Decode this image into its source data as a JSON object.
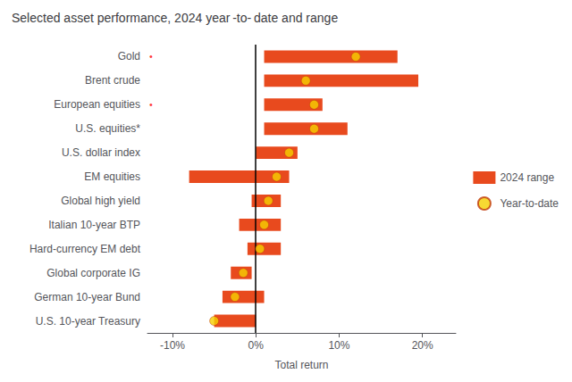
{
  "chart_data": {
    "type": "bar",
    "orientation": "horizontal",
    "title": "Selected asset performance, 2024 year -to- date and range",
    "xlabel": "Total return",
    "categories": [
      "Gold",
      "Brent crude",
      "European equities",
      "U.S. equities*",
      "U.S. dollar index",
      "EM equities",
      "Global high yield",
      "Italian 10-year BTP",
      "Hard-currency EM debt",
      "Global corporate IG",
      "German 10-year Bund",
      "U.S. 10-year Treasury"
    ],
    "series": [
      {
        "name": "2024 range",
        "type": "bar",
        "color": "#e84a1e",
        "low": [
          1.0,
          1.0,
          1.0,
          1.0,
          0.0,
          -8.0,
          -0.5,
          -2.0,
          -1.0,
          -3.0,
          -4.0,
          -5.0
        ],
        "high": [
          17.0,
          19.5,
          8.0,
          11.0,
          5.0,
          4.0,
          3.0,
          3.0,
          3.0,
          -0.5,
          1.0,
          0.0
        ]
      },
      {
        "name": "Year-to-date",
        "type": "scatter",
        "marker": "circle",
        "color": "#f5d000",
        "edgecolor": "#c0390a",
        "values": [
          12.0,
          6.0,
          7.0,
          7.0,
          4.0,
          2.5,
          1.5,
          1.0,
          0.5,
          -1.5,
          -2.5,
          -5.0
        ]
      }
    ],
    "annotations": [
      {
        "text": "•",
        "category": "Gold",
        "color": "red"
      },
      {
        "text": "•",
        "category": "European equities",
        "color": "red"
      }
    ],
    "reference_lines": [
      {
        "x": 0,
        "color": "black"
      }
    ],
    "xlim": [
      -13,
      24
    ],
    "xticks": [
      {
        "value": -10,
        "label": "-10%"
      },
      {
        "value": 0,
        "label": "0%"
      },
      {
        "value": 10,
        "label": "10%"
      },
      {
        "value": 20,
        "label": "20%"
      }
    ],
    "grid": false,
    "legend": "right"
  }
}
